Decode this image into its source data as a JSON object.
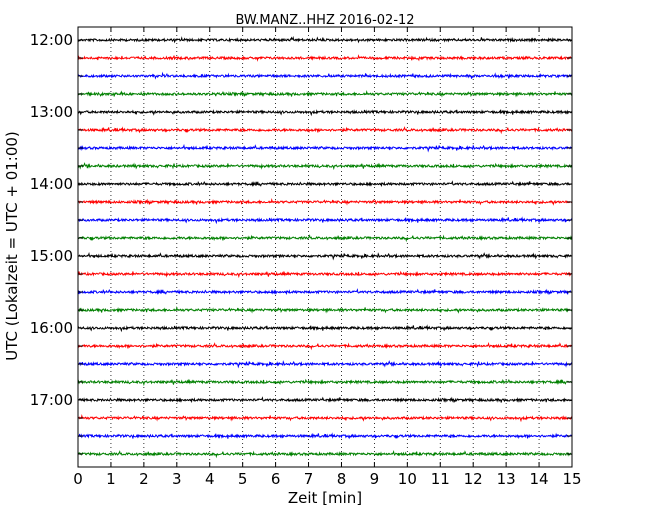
{
  "chart_data": {
    "type": "line",
    "title": "BW.MANZ..HHZ 2016-02-12",
    "xlabel": "Zeit  [min]",
    "ylabel": "UTC (Lokalzeit = UTC + 01:00)",
    "xlim": [
      0,
      15
    ],
    "x_ticks": [
      0,
      1,
      2,
      3,
      4,
      5,
      6,
      7,
      8,
      9,
      10,
      11,
      12,
      13,
      14,
      15
    ],
    "y_tick_labels": [
      "12:00",
      "13:00",
      "14:00",
      "15:00",
      "16:00",
      "17:00"
    ],
    "grid": "vertical dotted",
    "colors": [
      "#000000",
      "#ff0000",
      "#0000ff",
      "#008000"
    ],
    "traces": [
      {
        "start": "12:00",
        "color": "#000000"
      },
      {
        "start": "12:15",
        "color": "#ff0000"
      },
      {
        "start": "12:30",
        "color": "#0000ff"
      },
      {
        "start": "12:45",
        "color": "#008000"
      },
      {
        "start": "13:00",
        "color": "#000000"
      },
      {
        "start": "13:15",
        "color": "#ff0000"
      },
      {
        "start": "13:30",
        "color": "#0000ff"
      },
      {
        "start": "13:45",
        "color": "#008000"
      },
      {
        "start": "14:00",
        "color": "#000000"
      },
      {
        "start": "14:15",
        "color": "#ff0000"
      },
      {
        "start": "14:30",
        "color": "#0000ff"
      },
      {
        "start": "14:45",
        "color": "#008000"
      },
      {
        "start": "15:00",
        "color": "#000000"
      },
      {
        "start": "15:15",
        "color": "#ff0000"
      },
      {
        "start": "15:30",
        "color": "#0000ff"
      },
      {
        "start": "15:45",
        "color": "#008000"
      },
      {
        "start": "16:00",
        "color": "#000000"
      },
      {
        "start": "16:15",
        "color": "#ff0000"
      },
      {
        "start": "16:30",
        "color": "#0000ff"
      },
      {
        "start": "16:45",
        "color": "#008000"
      },
      {
        "start": "17:00",
        "color": "#000000"
      },
      {
        "start": "17:15",
        "color": "#ff0000"
      },
      {
        "start": "17:30",
        "color": "#0000ff"
      },
      {
        "start": "17:45",
        "color": "#008000"
      }
    ]
  }
}
